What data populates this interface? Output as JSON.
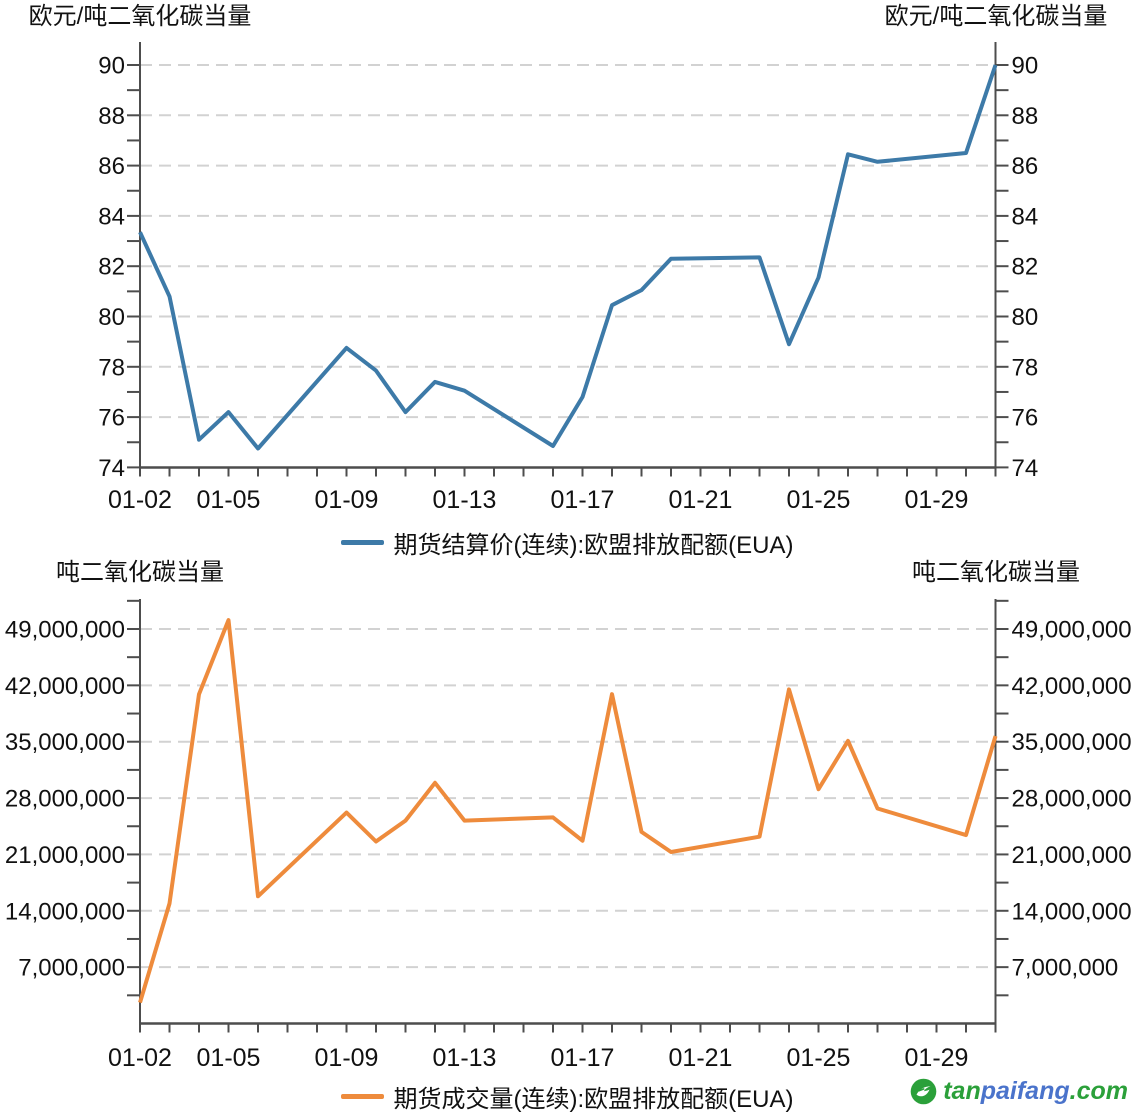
{
  "watermark": {
    "logo_color": "#2ba03a",
    "site_text_parts": [
      {
        "text": "tan",
        "color": "#2ba03a"
      },
      {
        "text": "paifang",
        "color": "#4a73cb"
      },
      {
        "text": ".com",
        "color": "#2ba03a"
      }
    ]
  },
  "chart_data": [
    {
      "type": "line",
      "title": "",
      "ylabel_left": "欧元/吨二氧化碳当量",
      "ylabel_right": "欧元/吨二氧化碳当量",
      "ylim": [
        74,
        91
      ],
      "yticks": [
        90,
        88,
        86,
        84,
        82,
        80,
        78,
        76,
        74
      ],
      "ytick_labels": [
        "90",
        "88",
        "86",
        "84",
        "82",
        "80",
        "78",
        "76",
        "74"
      ],
      "yticks_minor": [
        91,
        89,
        87,
        85,
        83,
        81,
        79,
        77,
        75
      ],
      "grid": true,
      "x_range_days": [
        0,
        29
      ],
      "xtick_labels": [
        "01-02",
        "01-05",
        "01-09",
        "01-13",
        "01-17",
        "01-21",
        "01-25",
        "01-29"
      ],
      "xtick_offsets": [
        0,
        3,
        7,
        11,
        15,
        19,
        23,
        27
      ],
      "legend_position": "bottom",
      "series": [
        {
          "name": "期货结算价(连续):欧盟排放配额(EUA)",
          "color": "#3d7aa8",
          "x": [
            "01-02",
            "01-03",
            "01-04",
            "01-05",
            "01-06",
            "01-09",
            "01-10",
            "01-11",
            "01-12",
            "01-13",
            "01-16",
            "01-17",
            "01-18",
            "01-19",
            "01-20",
            "01-23",
            "01-24",
            "01-25",
            "01-26",
            "01-27",
            "01-30",
            "01-31"
          ],
          "x_offsets": [
            0,
            1,
            2,
            3,
            4,
            7,
            8,
            9,
            10,
            11,
            14,
            15,
            16,
            17,
            18,
            21,
            22,
            23,
            24,
            25,
            28,
            29
          ],
          "values": [
            83.35,
            80.8,
            75.1,
            76.2,
            74.75,
            78.75,
            77.85,
            76.2,
            77.4,
            77.05,
            74.85,
            76.8,
            80.45,
            81.05,
            82.3,
            82.35,
            78.9,
            81.55,
            86.45,
            86.15,
            86.5,
            90.0
          ]
        }
      ]
    },
    {
      "type": "line",
      "title": "",
      "ylabel_left": "吨二氧化碳当量",
      "ylabel_right": "吨二氧化碳当量",
      "ylim": [
        0,
        52700000
      ],
      "yticks": [
        49000000,
        42000000,
        35000000,
        28000000,
        21000000,
        14000000,
        7000000
      ],
      "ytick_labels": [
        "49,000,000",
        "42,000,000",
        "35,000,000",
        "28,000,000",
        "21,000,000",
        "14,000,000",
        "7,000,000"
      ],
      "yticks_minor": [
        52500000,
        45500000,
        38500000,
        31500000,
        24500000,
        17500000,
        10500000,
        3500000
      ],
      "grid": true,
      "x_range_days": [
        0,
        29
      ],
      "xtick_labels": [
        "01-02",
        "01-05",
        "01-09",
        "01-13",
        "01-17",
        "01-21",
        "01-25",
        "01-29"
      ],
      "xtick_offsets": [
        0,
        3,
        7,
        11,
        15,
        19,
        23,
        27
      ],
      "legend_position": "bottom",
      "series": [
        {
          "name": "期货成交量(连续):欧盟排放配额(EUA)",
          "color": "#ee8b3c",
          "x": [
            "01-02",
            "01-03",
            "01-04",
            "01-05",
            "01-06",
            "01-09",
            "01-10",
            "01-11",
            "01-12",
            "01-13",
            "01-16",
            "01-17",
            "01-18",
            "01-19",
            "01-20",
            "01-23",
            "01-24",
            "01-25",
            "01-26",
            "01-27",
            "01-30",
            "01-31"
          ],
          "x_offsets": [
            0,
            1,
            2,
            3,
            4,
            7,
            8,
            9,
            10,
            11,
            14,
            15,
            16,
            17,
            18,
            21,
            22,
            23,
            24,
            25,
            28,
            29
          ],
          "values": [
            2600000,
            14900000,
            40900000,
            50100000,
            15800000,
            26200000,
            22600000,
            25200000,
            29900000,
            25200000,
            25600000,
            22700000,
            40900000,
            23800000,
            21300000,
            23200000,
            41500000,
            29100000,
            35100000,
            26700000,
            23400000,
            35700000
          ]
        }
      ]
    }
  ]
}
